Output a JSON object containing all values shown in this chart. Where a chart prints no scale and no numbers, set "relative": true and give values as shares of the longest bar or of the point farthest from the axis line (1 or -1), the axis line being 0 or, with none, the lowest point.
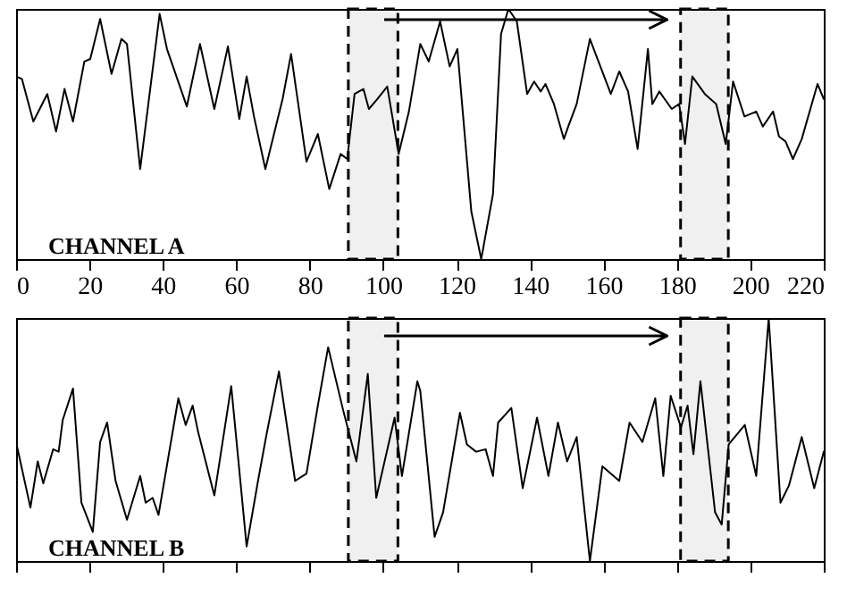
{
  "chart_data": [
    {
      "type": "line",
      "relative": true,
      "annotations": [
        "CHANNEL A"
      ],
      "xlim": [
        0,
        220
      ],
      "xticks": [
        0,
        20,
        40,
        60,
        80,
        100,
        120,
        140,
        160,
        180,
        200,
        220
      ],
      "tick_labels": "x",
      "bands": [
        {
          "axis": "x",
          "from": 90.5,
          "to": 104,
          "color": "#000000"
        },
        {
          "axis": "x",
          "from": 181,
          "to": 194,
          "color": "#000000"
        }
      ],
      "x": [
        0,
        1.6,
        4.7,
        8.5,
        10.9,
        13.2,
        15.5,
        18.6,
        20.2,
        22.9,
        26,
        28.7,
        30.2,
        33.8,
        39.1,
        41.1,
        46.5,
        50.1,
        54,
        57.7,
        60.8,
        62.8,
        64.8,
        67.9,
        72.6,
        74.9,
        79.1,
        82.2,
        85.3,
        88.4,
        90.2,
        92.2,
        94.6,
        96.1,
        98.4,
        101.1,
        104.2,
        107,
        110.1,
        112.4,
        115.5,
        118.1,
        120.2,
        124,
        126.7,
        129.9,
        132.1,
        134.1,
        136.4,
        139.2,
        141.1,
        142.9,
        144.2,
        146.5,
        149.2,
        150.4,
        152.7,
        156.3,
        162,
        164.3,
        166.7,
        169.3,
        172.1,
        173.3,
        175.2,
        178.6,
        180.6,
        182.2,
        184.2,
        187.6,
        190.7,
        193.3,
        195.3,
        198.4,
        201.6,
        203.4,
        206.2,
        207.8,
        209.6,
        211.6,
        214,
        218.3,
        220
      ],
      "series": [
        {
          "color": "#000000",
          "values": [
            0.73,
            0.72,
            0.55,
            0.66,
            0.51,
            0.68,
            0.55,
            0.79,
            0.8,
            0.96,
            0.74,
            0.88,
            0.86,
            0.36,
            0.98,
            0.84,
            0.61,
            0.86,
            0.6,
            0.85,
            0.56,
            0.73,
            0.57,
            0.36,
            0.64,
            0.82,
            0.39,
            0.5,
            0.28,
            0.42,
            0.4,
            0.66,
            0.68,
            0.6,
            0.64,
            0.69,
            0.42,
            0.59,
            0.86,
            0.79,
            0.95,
            0.77,
            0.84,
            0.19,
            0,
            0.26,
            0.9,
            1,
            0.95,
            0.66,
            0.71,
            0.67,
            0.7,
            0.62,
            0.48,
            0.53,
            0.62,
            0.88,
            0.66,
            0.75,
            0.67,
            0.44,
            0.84,
            0.62,
            0.67,
            0.6,
            0.62,
            0.46,
            0.73,
            0.66,
            0.62,
            0.46,
            0.71,
            0.57,
            0.59,
            0.53,
            0.59,
            0.49,
            0.47,
            0.4,
            0.48,
            0.7,
            0.64
          ]
        }
      ]
    },
    {
      "type": "line",
      "relative": true,
      "annotations": [
        "CHANNEL B"
      ],
      "xlim": [
        0,
        220
      ],
      "xticks": [
        0,
        20,
        40,
        60,
        80,
        100,
        120,
        140,
        160,
        180,
        200,
        220
      ],
      "tick_labels": false,
      "bands": [
        {
          "axis": "x",
          "from": 90.5,
          "to": 104,
          "color": "#000000"
        },
        {
          "axis": "x",
          "from": 181,
          "to": 194,
          "color": "#000000"
        }
      ],
      "x": [
        0,
        3.9,
        5.9,
        7.4,
        10.1,
        11.6,
        12.7,
        15.5,
        17.8,
        20.9,
        22.9,
        24.8,
        27.1,
        30.2,
        33.8,
        35.3,
        37.2,
        38.8,
        44.2,
        46.2,
        48.1,
        49.6,
        54,
        58.6,
        62.8,
        65.9,
        68.2,
        71.6,
        76,
        79.1,
        82.2,
        85,
        89.1,
        92.7,
        95.8,
        98.1,
        103.1,
        105.1,
        109.3,
        110.1,
        114,
        116.3,
        120.9,
        122.8,
        125.3,
        127.9,
        129.9,
        131.3,
        134.9,
        138,
        141.9,
        145,
        147.6,
        150.1,
        152.7,
        156.3,
        159.7,
        164.3,
        167.1,
        170.6,
        174.1,
        176.3,
        178.3,
        181.1,
        182.9,
        184.5,
        186.4,
        190.4,
        192.2,
        194.1,
        198.5,
        201.6,
        205,
        208.2,
        210.5,
        214,
        217.4,
        220
      ],
      "series": [
        {
          "color": "#000000",
          "values": [
            0.49,
            0.22,
            0.41,
            0.32,
            0.46,
            0.45,
            0.58,
            0.71,
            0.24,
            0.12,
            0.49,
            0.57,
            0.33,
            0.17,
            0.35,
            0.24,
            0.26,
            0.19,
            0.67,
            0.56,
            0.64,
            0.53,
            0.27,
            0.72,
            0.06,
            0.33,
            0.52,
            0.78,
            0.33,
            0.36,
            0.64,
            0.88,
            0.62,
            0.41,
            0.77,
            0.26,
            0.59,
            0.35,
            0.74,
            0.7,
            0.1,
            0.2,
            0.61,
            0.48,
            0.45,
            0.46,
            0.35,
            0.57,
            0.63,
            0.3,
            0.59,
            0.35,
            0.57,
            0.41,
            0.51,
            0,
            0.39,
            0.33,
            0.57,
            0.49,
            0.67,
            0.35,
            0.68,
            0.55,
            0.64,
            0.44,
            0.74,
            0.2,
            0.15,
            0.48,
            0.56,
            0.35,
            1,
            0.24,
            0.31,
            0.51,
            0.3,
            0.45
          ]
        }
      ]
    }
  ]
}
